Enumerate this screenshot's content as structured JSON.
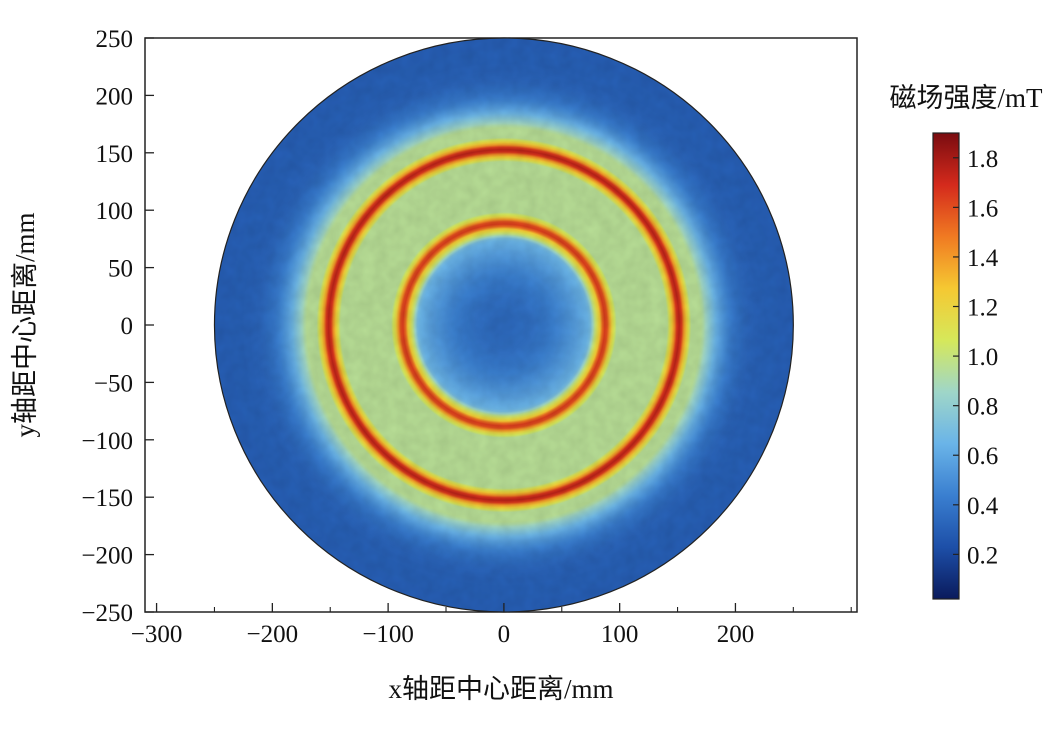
{
  "chart_data": {
    "type": "heatmap",
    "title": "",
    "xlabel": "x轴距中心距离/mm",
    "ylabel": "y轴距中心距离/mm",
    "xlim": [
      -310,
      305
    ],
    "ylim": [
      -250,
      250
    ],
    "x_ticks": [
      -300,
      -200,
      -100,
      0,
      100,
      200
    ],
    "x_tick_labels": [
      "−300",
      "−200",
      "−100",
      "0",
      "100",
      "200"
    ],
    "y_ticks": [
      250,
      200,
      150,
      100,
      50,
      0,
      -50,
      -100,
      -150,
      -200,
      -250
    ],
    "y_tick_labels": [
      "250",
      "200",
      "150",
      "100",
      "50",
      "0",
      "−50",
      "−100",
      "−150",
      "−200",
      "−250"
    ],
    "disk_radius_mm": 250,
    "field_description": "Magnetic field strength over a circular disk with two high-field rings",
    "rings": [
      {
        "name": "inner ring",
        "radius_mm": 88,
        "peak_mT": 1.65
      },
      {
        "name": "outer ring",
        "radius_mm": 152,
        "peak_mT": 1.75
      }
    ],
    "center_value_mT": 0.35,
    "between_rings_value_mT": 0.95,
    "outer_region_value_mT": 0.3,
    "colorbar": {
      "title": "磁场强度/mT",
      "min": 0.02,
      "max": 1.9,
      "ticks": [
        0.2,
        0.4,
        0.6,
        0.8,
        1.0,
        1.2,
        1.4,
        1.6,
        1.8
      ],
      "tick_labels": [
        "0.2",
        "0.4",
        "0.6",
        "0.8",
        "1.0",
        "1.2",
        "1.4",
        "1.6",
        "1.8"
      ],
      "colormap": [
        "#0a1a5c",
        "#1d4fa8",
        "#3a7fd0",
        "#6ab4e8",
        "#9fd6c8",
        "#d6e85a",
        "#f5c832",
        "#f07a22",
        "#d42a1c",
        "#7a0c10"
      ]
    }
  }
}
